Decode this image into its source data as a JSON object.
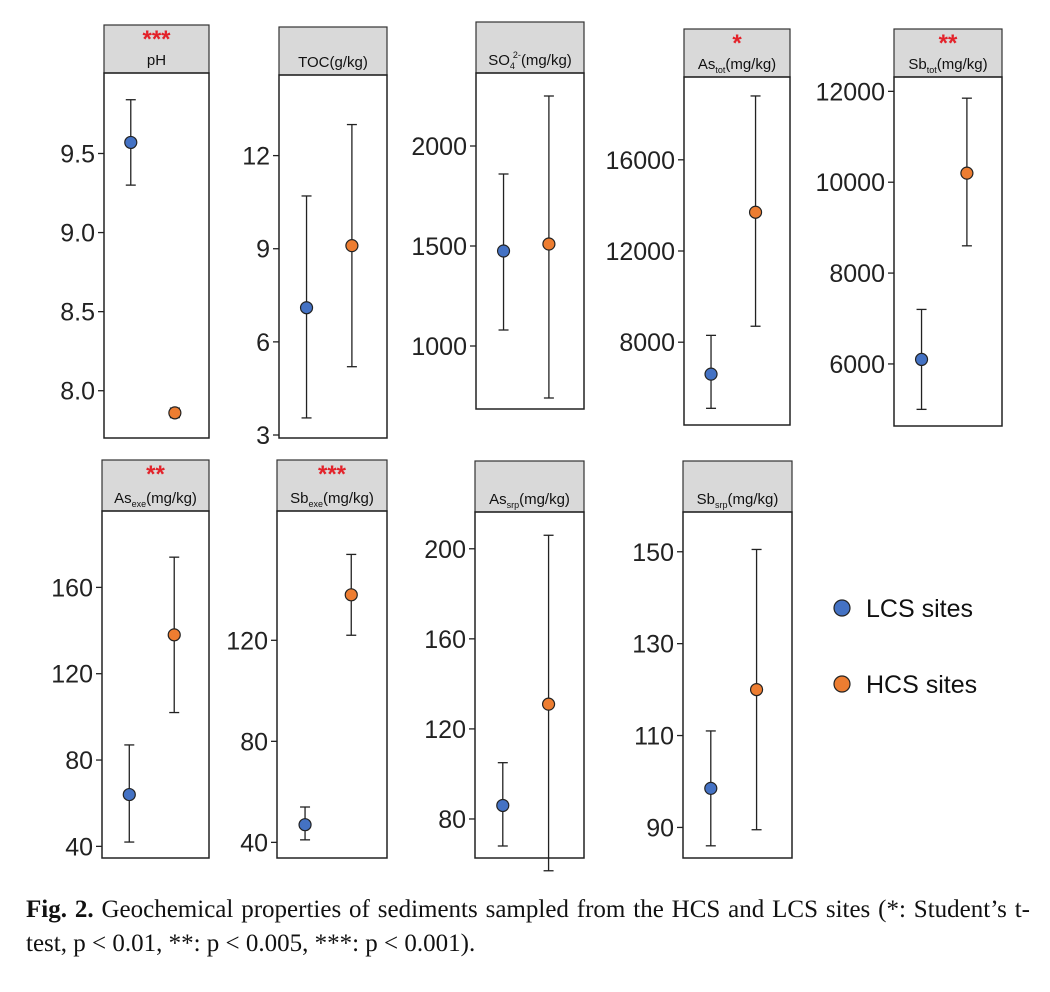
{
  "chart_data": [
    {
      "type": "errorbar",
      "title": "pH",
      "title_main": "pH",
      "title_sub": "",
      "title_tail": "",
      "significance": "***",
      "ylim": [
        7.72,
        9.99
      ],
      "yticks": [
        8.0,
        8.5,
        9.0,
        9.5
      ],
      "ytick_labels": [
        "8.0",
        "8.5",
        "9.0",
        "9.5"
      ],
      "series": [
        {
          "name": "LCS sites",
          "mean": 9.57,
          "low": 9.3,
          "high": 9.84
        },
        {
          "name": "HCS sites",
          "mean": 7.86,
          "low": 7.83,
          "high": 7.89
        }
      ]
    },
    {
      "type": "errorbar",
      "title": "TOC(g/kg)",
      "title_main": "TOC(g/kg)",
      "title_sub": "",
      "title_tail": "",
      "significance": "",
      "ylim": [
        3.0,
        14.5
      ],
      "yticks": [
        3,
        6,
        9,
        12
      ],
      "ytick_labels": [
        "3",
        "6",
        "9",
        "12"
      ],
      "series": [
        {
          "name": "LCS sites",
          "mean": 7.1,
          "low": 3.55,
          "high": 10.7
        },
        {
          "name": "HCS sites",
          "mean": 9.1,
          "low": 5.2,
          "high": 13.0
        }
      ]
    },
    {
      "type": "errorbar",
      "title": "SO42-(mg/kg)",
      "title_main": "SO",
      "title_sub": "4",
      "title_sup": "2-",
      "title_tail": "(mg/kg)",
      "significance": "",
      "ylim": [
        700,
        2350
      ],
      "yticks": [
        1000,
        1500,
        2000
      ],
      "ytick_labels": [
        "1000",
        "1500",
        "2000"
      ],
      "series": [
        {
          "name": "LCS sites",
          "mean": 1475,
          "low": 1080,
          "high": 1860
        },
        {
          "name": "HCS sites",
          "mean": 1510,
          "low": 740,
          "high": 2250
        }
      ]
    },
    {
      "type": "errorbar",
      "title": "Astot(mg/kg)",
      "title_main": "As",
      "title_sub": "tot",
      "title_tail": "(mg/kg)",
      "significance": "*",
      "ylim": [
        4500,
        19500
      ],
      "yticks": [
        8000,
        12000,
        16000
      ],
      "ytick_labels": [
        "8000",
        "12000",
        "16000"
      ],
      "series": [
        {
          "name": "LCS sites",
          "mean": 6600,
          "low": 5100,
          "high": 8300
        },
        {
          "name": "HCS sites",
          "mean": 13700,
          "low": 8700,
          "high": 18800
        }
      ]
    },
    {
      "type": "errorbar",
      "title": "Sbtot(mg/kg)",
      "title_main": "Sb",
      "title_sub": "tot",
      "title_tail": "(mg/kg)",
      "significance": "**",
      "ylim": [
        4700,
        12250
      ],
      "yticks": [
        6000,
        8000,
        10000,
        12000
      ],
      "ytick_labels": [
        "6000",
        "8000",
        "10000",
        "12000"
      ],
      "series": [
        {
          "name": "LCS sites",
          "mean": 6100,
          "low": 5000,
          "high": 7200
        },
        {
          "name": "HCS sites",
          "mean": 10200,
          "low": 8600,
          "high": 11850
        }
      ]
    },
    {
      "type": "errorbar",
      "title": "Asexe(mg/kg)",
      "title_main": "As",
      "title_sub": "exe",
      "title_tail": "(mg/kg)",
      "significance": "**",
      "ylim": [
        36,
        194
      ],
      "yticks": [
        40,
        80,
        120,
        160
      ],
      "ytick_labels": [
        "40",
        "80",
        "120",
        "160"
      ],
      "series": [
        {
          "name": "LCS sites",
          "mean": 64,
          "low": 42,
          "high": 87
        },
        {
          "name": "HCS sites",
          "mean": 138,
          "low": 102,
          "high": 174
        }
      ]
    },
    {
      "type": "errorbar",
      "title": "Sbexe(mg/kg)",
      "title_main": "Sb",
      "title_sub": "exe",
      "title_tail": "(mg/kg)",
      "significance": "***",
      "ylim": [
        35,
        170
      ],
      "yticks": [
        40,
        80,
        120
      ],
      "ytick_labels": [
        "40",
        "80",
        "120"
      ],
      "series": [
        {
          "name": "LCS sites",
          "mean": 47,
          "low": 41,
          "high": 54
        },
        {
          "name": "HCS sites",
          "mean": 138,
          "low": 122,
          "high": 154
        }
      ]
    },
    {
      "type": "errorbar",
      "title": "Assrp(mg/kg)",
      "title_main": "As",
      "title_sub": "srp",
      "title_tail": "(mg/kg)",
      "significance": "",
      "ylim": [
        64,
        215
      ],
      "yticks": [
        80,
        120,
        160,
        200
      ],
      "ytick_labels": [
        "80",
        "120",
        "160",
        "200"
      ],
      "series": [
        {
          "name": "LCS sites",
          "mean": 86,
          "low": 68,
          "high": 105
        },
        {
          "name": "HCS sites",
          "mean": 131,
          "low": 57,
          "high": 206
        }
      ]
    },
    {
      "type": "errorbar",
      "title": "Sbsrp(mg/kg)",
      "title_main": "Sb",
      "title_sub": "srp",
      "title_tail": "(mg/kg)",
      "significance": "",
      "ylim": [
        84,
        158
      ],
      "yticks": [
        90,
        110,
        130,
        150
      ],
      "ytick_labels": [
        "90",
        "110",
        "130",
        "150"
      ],
      "series": [
        {
          "name": "LCS sites",
          "mean": 98.5,
          "low": 86,
          "high": 111
        },
        {
          "name": "HCS sites",
          "mean": 120,
          "low": 89.5,
          "high": 150.5
        }
      ]
    }
  ],
  "legend": {
    "placement": "right",
    "items": [
      {
        "label": "LCS sites",
        "color": "#4472c4"
      },
      {
        "label": "HCS sites",
        "color": "#ed7d31"
      }
    ]
  },
  "colors": {
    "lcs": "#4472c4",
    "hcs": "#ed7d31",
    "significance": "#e3222a",
    "strip": "#d9d9d9"
  },
  "caption": {
    "label": "Fig. 2.",
    "text": "Geochemical properties of sediments sampled from the HCS and LCS sites (*: Student’s t-test, p < 0.01, **: p < 0.005, ***: p < 0.001)."
  }
}
